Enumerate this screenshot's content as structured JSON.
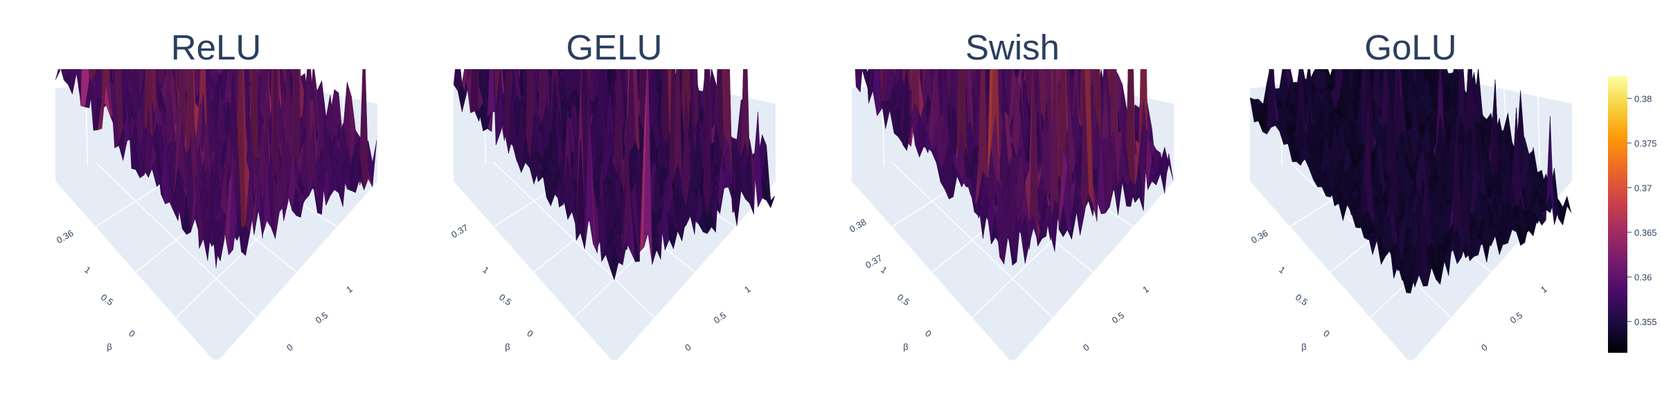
{
  "chart_data": {
    "type": "surface",
    "colorscale": "inferno",
    "colors": {
      "scene_bg": "#e5ecf6",
      "grid": "#ffffff",
      "text": "#2a3f5f",
      "inferno": [
        "#000004",
        "#1b0c41",
        "#4a0c6b",
        "#781c6d",
        "#a52c60",
        "#cf4446",
        "#ed6925",
        "#fb9b06",
        "#f7d13d",
        "#fcffa4"
      ]
    },
    "colorbar": {
      "range": [
        0.3515,
        0.3825
      ],
      "ticks": [
        "0.355",
        "0.36",
        "0.365",
        "0.37",
        "0.375",
        "0.38"
      ]
    },
    "subplots": [
      {
        "title": "ReLU",
        "z_tick_labels": [
          "0.36"
        ],
        "left_axis_label": "β",
        "left_axis_ticks": [
          "1",
          "0.5",
          "0"
        ],
        "right_axis_ticks": [
          "1",
          "0.5",
          "0"
        ],
        "z_base": 0.3555,
        "z_spread": 0.016,
        "spike_scale": 1.0
      },
      {
        "title": "GELU",
        "z_tick_labels": [
          "0.37"
        ],
        "left_axis_label": "β",
        "left_axis_ticks": [
          "1",
          "0.5",
          "0"
        ],
        "right_axis_ticks": [
          "1",
          "0.5",
          "0"
        ],
        "z_base": 0.354,
        "z_spread": 0.015,
        "spike_scale": 0.92
      },
      {
        "title": "Swish",
        "z_tick_labels": [
          "0.38",
          "0.37"
        ],
        "left_axis_label": "β",
        "left_axis_ticks": [
          "1",
          "0.5",
          "0"
        ],
        "right_axis_ticks": [
          "1",
          "0.5",
          "0"
        ],
        "z_base": 0.355,
        "z_spread": 0.017,
        "spike_scale": 1.05
      },
      {
        "title": "GoLU",
        "z_tick_labels": [
          "0.36"
        ],
        "left_axis_label": "β",
        "left_axis_ticks": [
          "1",
          "0.5",
          "0"
        ],
        "right_axis_ticks": [
          "1",
          "0.5",
          "0"
        ],
        "z_base": 0.3525,
        "z_spread": 0.01,
        "spike_scale": 0.8
      }
    ]
  }
}
